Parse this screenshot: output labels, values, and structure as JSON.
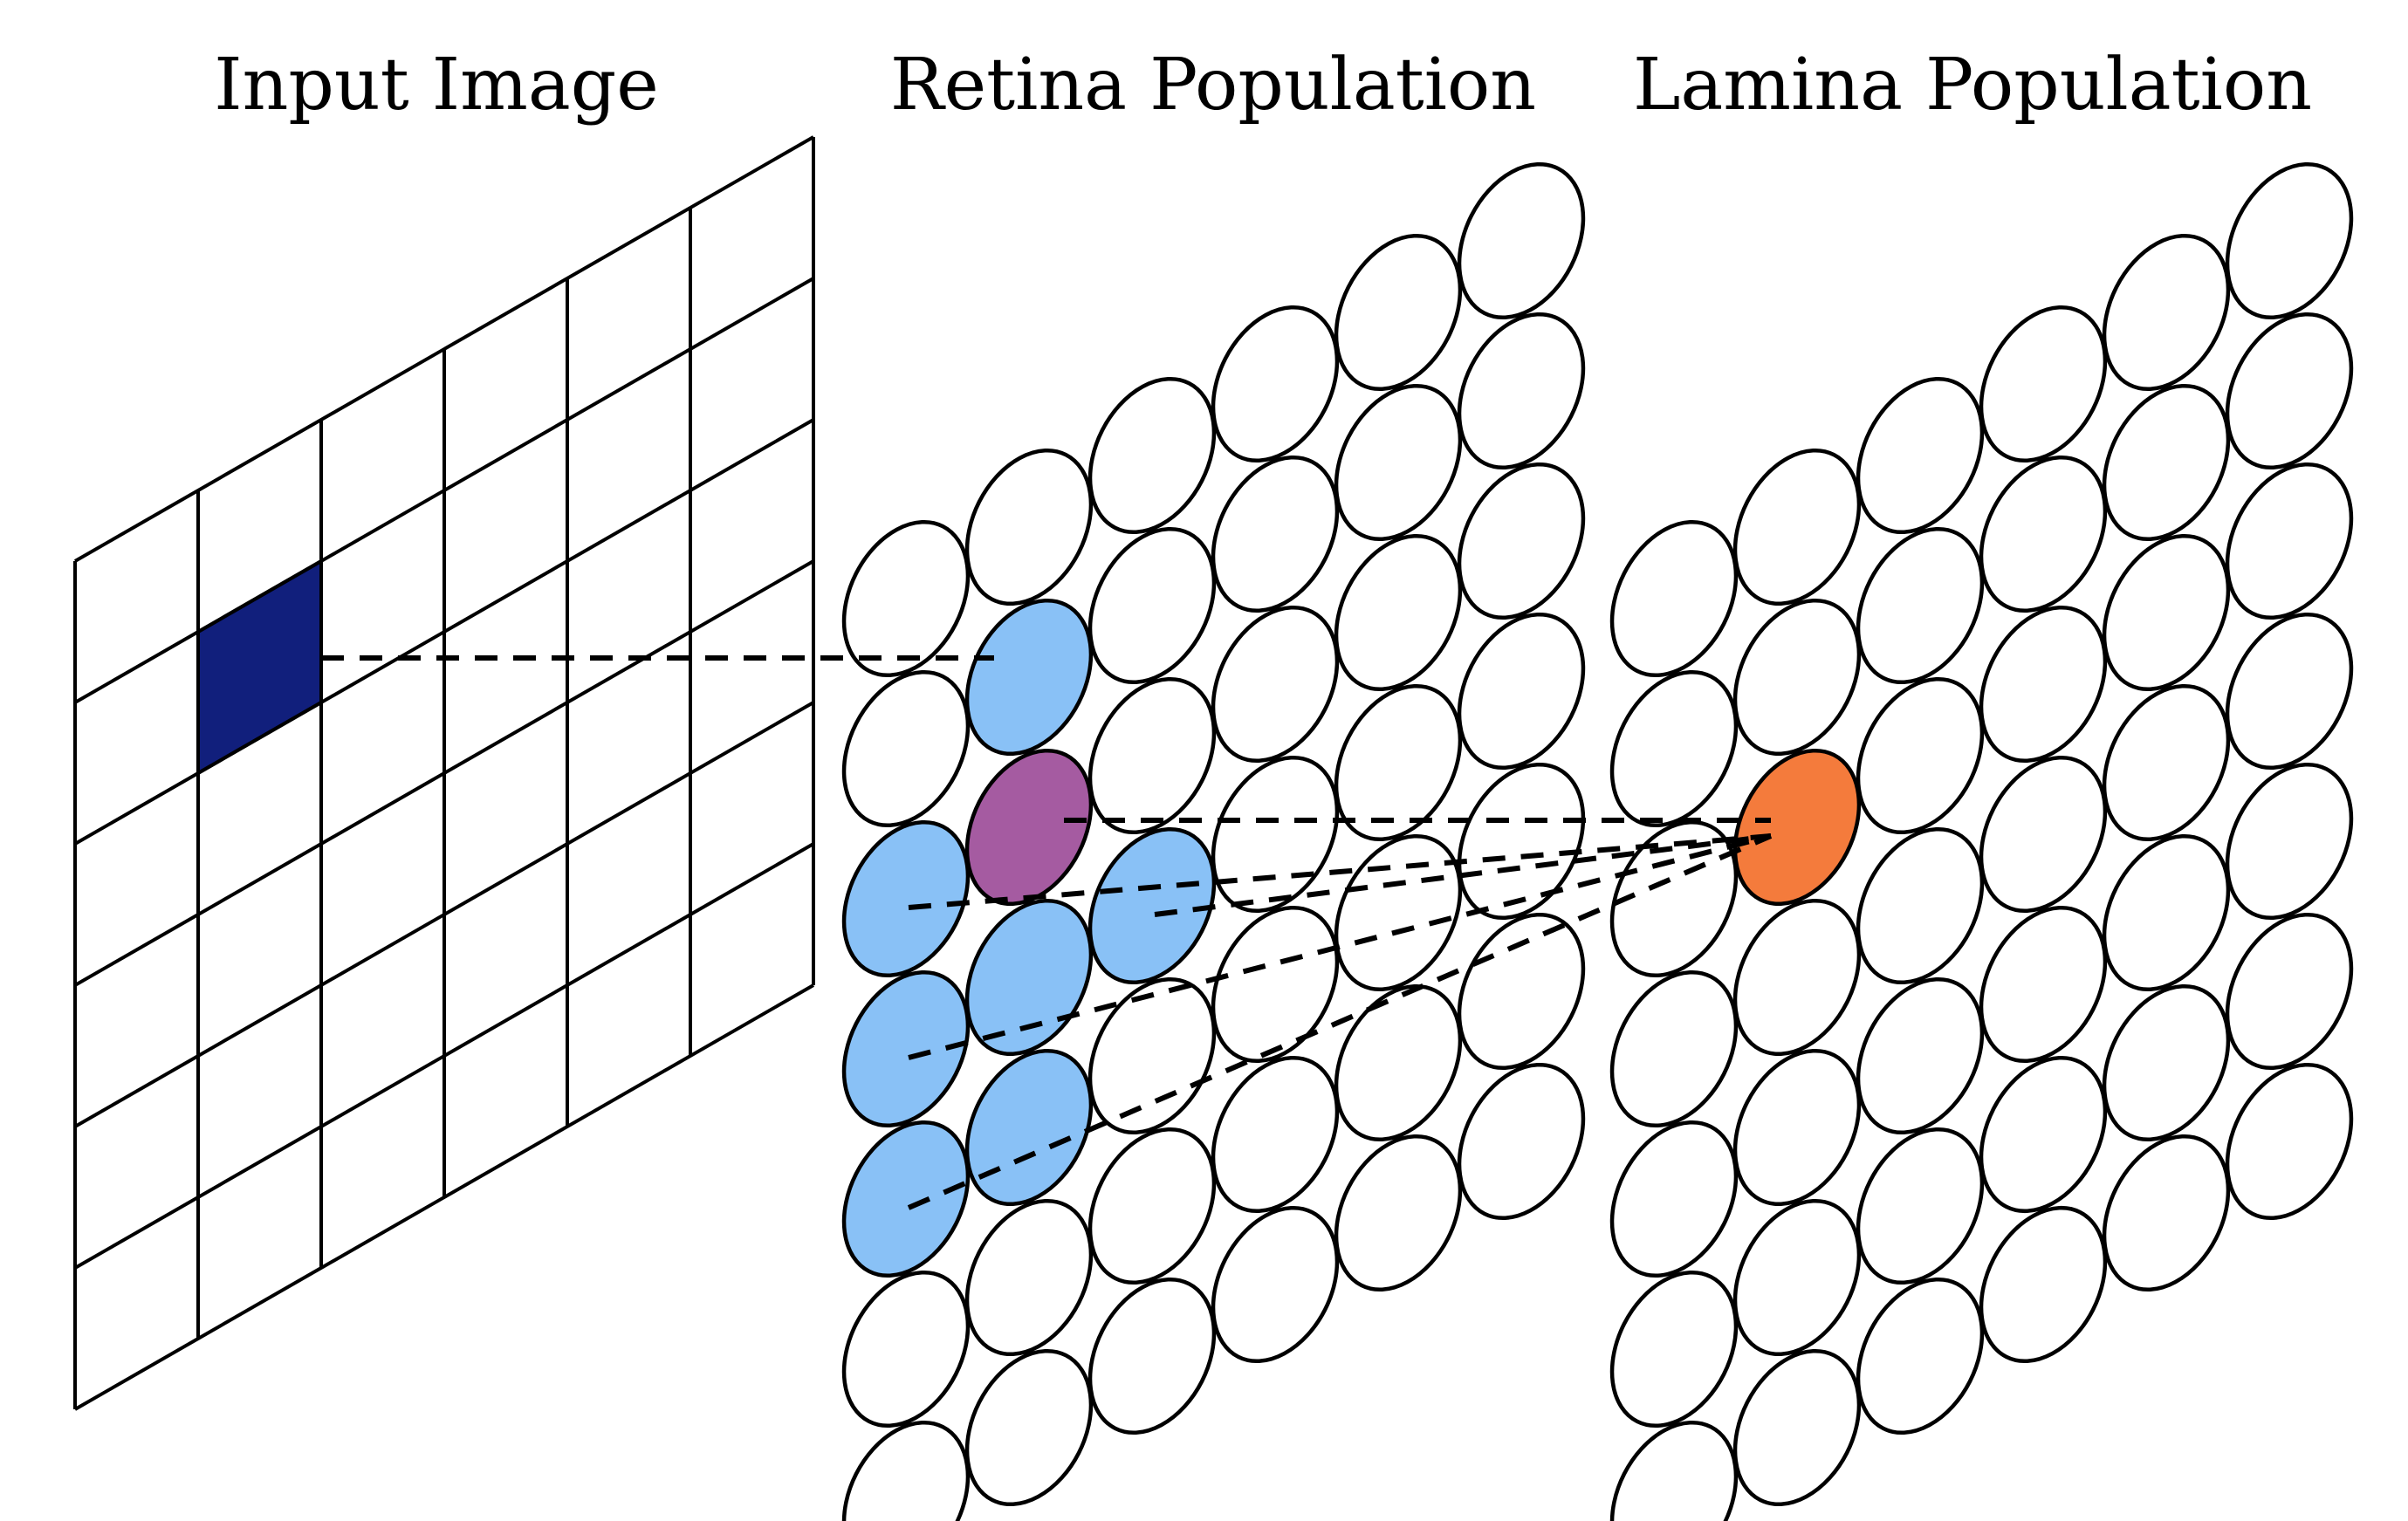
{
  "panels": {
    "input": {
      "title": "Input Image"
    },
    "retina": {
      "title": "Retina Population"
    },
    "lamina": {
      "title": "Lamina Population"
    }
  },
  "input_grid": {
    "rows": 6,
    "cols": 6,
    "highlighted_cell": {
      "row": 1,
      "col": 1
    }
  },
  "retina_grid": {
    "cols": 6,
    "rows": 7,
    "neighbor_cells": [
      [
        0,
        2
      ],
      [
        0,
        3
      ],
      [
        0,
        4
      ],
      [
        1,
        1
      ],
      [
        1,
        3
      ],
      [
        1,
        4
      ],
      [
        2,
        3
      ]
    ],
    "center_cell": [
      1,
      2
    ]
  },
  "lamina_grid": {
    "cols": 6,
    "rows": 7,
    "target_cell": [
      1,
      2
    ]
  },
  "colors": {
    "input_highlight": "#111f7c",
    "retina_neighbor": "#89c1f6",
    "retina_center": "#a55ba1",
    "lamina_target": "#f47b3c",
    "stroke": "#000000",
    "default_fill": "#ffffff"
  }
}
